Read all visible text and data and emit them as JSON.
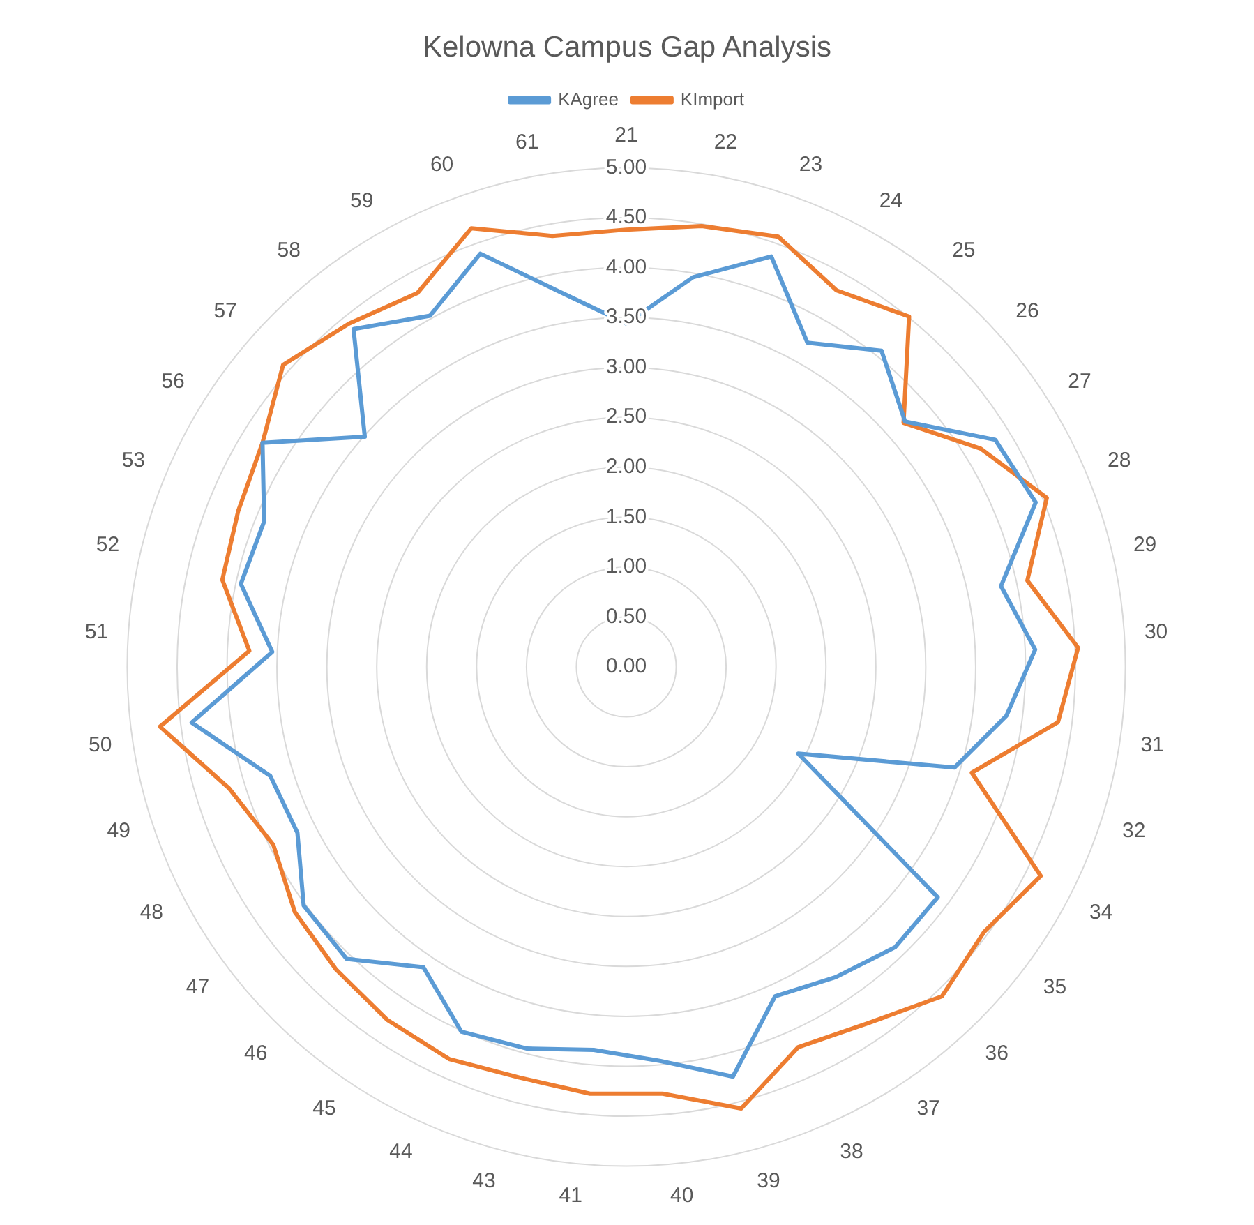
{
  "chart_data": {
    "type": "radar",
    "title": "Kelowna Campus Gap Analysis",
    "categories": [
      "21",
      "22",
      "23",
      "24",
      "25",
      "26",
      "27",
      "28",
      "29",
      "30",
      "31",
      "32",
      "34",
      "35",
      "36",
      "37",
      "38",
      "39",
      "40",
      "41",
      "43",
      "44",
      "45",
      "46",
      "47",
      "48",
      "49",
      "50",
      "51",
      "52",
      "53",
      "56",
      "57",
      "58",
      "59",
      "60",
      "61"
    ],
    "series": [
      {
        "name": "KAgree",
        "color": "#5b9bd5",
        "values": [
          3.44,
          3.96,
          4.36,
          3.72,
          4.07,
          3.72,
          4.34,
          4.42,
          3.84,
          4.1,
          3.84,
          3.44,
          1.93,
          3.88,
          3.89,
          3.75,
          3.62,
          4.24,
          3.96,
          3.85,
          3.95,
          4.01,
          3.63,
          4.05,
          4.02,
          3.69,
          3.73,
          4.39,
          3.55,
          3.95,
          3.91,
          4.28,
          3.49,
          4.35,
          4.03,
          4.39,
          3.8
        ]
      },
      {
        "name": "KImport",
        "color": "#ed7d31",
        "values": [
          4.38,
          4.48,
          4.57,
          4.32,
          4.51,
          3.7,
          4.17,
          4.54,
          4.11,
          4.53,
          4.36,
          3.62,
          4.65,
          4.46,
          4.57,
          4.31,
          4.18,
          4.57,
          4.29,
          4.29,
          4.25,
          4.31,
          4.27,
          4.2,
          4.13,
          3.96,
          4.16,
          4.71,
          3.78,
          4.14,
          4.19,
          4.28,
          4.58,
          4.42,
          4.29,
          4.66,
          4.38
        ]
      }
    ],
    "ylim": [
      0,
      5
    ],
    "yticks": [
      {
        "value": 0,
        "label": "0.00"
      },
      {
        "value": 0.5,
        "label": "0.50"
      },
      {
        "value": 1,
        "label": "1.00"
      },
      {
        "value": 1.5,
        "label": "1.50"
      },
      {
        "value": 2,
        "label": "2.00"
      },
      {
        "value": 2.5,
        "label": "2.50"
      },
      {
        "value": 3,
        "label": "3.00"
      },
      {
        "value": 3.5,
        "label": "3.50"
      },
      {
        "value": 4,
        "label": "4.00"
      },
      {
        "value": 4.5,
        "label": "4.50"
      },
      {
        "value": 5,
        "label": "5.00"
      }
    ],
    "grid": true,
    "legend": "top",
    "marker": "none",
    "line_style": "solid"
  }
}
